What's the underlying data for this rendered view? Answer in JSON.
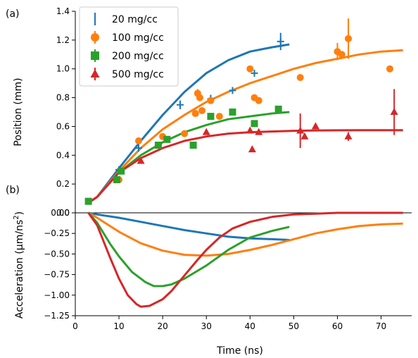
{
  "chart_data": [
    {
      "panel": "(a)",
      "type": "scatter",
      "ylabel": "Position (mm)",
      "xlim": [
        0,
        77
      ],
      "ylim": [
        0,
        1.4
      ],
      "xticks": [
        0,
        10,
        20,
        30,
        40,
        50,
        60,
        70
      ],
      "yticks": [
        0.0,
        0.2,
        0.4,
        0.6,
        0.8,
        1.0,
        1.2,
        1.4
      ],
      "yticklabels": [
        "0.0",
        "0.2",
        "0.4",
        "0.6",
        "0.8",
        "1.0",
        "1.2",
        "1.4"
      ],
      "legend_position": "top-left",
      "series": [
        {
          "name": "20 mg/cc",
          "color": "#1f77b4",
          "marker": "plus",
          "points": [
            [
              10,
              0.3,
              0.01
            ],
            [
              14.5,
              0.45,
              0.01
            ],
            [
              24,
              0.75,
              0.03
            ],
            [
              31,
              0.79,
              0.03
            ],
            [
              36,
              0.85,
              0.01
            ],
            [
              41,
              0.97,
              0.02
            ],
            [
              47,
              1.19,
              0.06
            ]
          ],
          "fit": [
            [
              3,
              0.07
            ],
            [
              5,
              0.11
            ],
            [
              10,
              0.31
            ],
            [
              15,
              0.5
            ],
            [
              20,
              0.68
            ],
            [
              25,
              0.84
            ],
            [
              30,
              0.97
            ],
            [
              35,
              1.06
            ],
            [
              40,
              1.12
            ],
            [
              45,
              1.15
            ],
            [
              49,
              1.17
            ]
          ]
        },
        {
          "name": "100 mg/cc",
          "color": "#ff7f0e",
          "marker": "circle",
          "points": [
            [
              10,
              0.23,
              0
            ],
            [
              14.5,
              0.5,
              0
            ],
            [
              20,
              0.53,
              0
            ],
            [
              25,
              0.55,
              0
            ],
            [
              27.5,
              0.69,
              0
            ],
            [
              28,
              0.83,
              0.03
            ],
            [
              28.5,
              0.8,
              0
            ],
            [
              29,
              0.71,
              0
            ],
            [
              31,
              0.78,
              0
            ],
            [
              33,
              0.67,
              0
            ],
            [
              40,
              1.0,
              0
            ],
            [
              41,
              0.8,
              0
            ],
            [
              42,
              0.78,
              0
            ],
            [
              51.5,
              0.94,
              0
            ],
            [
              60,
              1.12,
              0.06
            ],
            [
              61,
              1.1,
              0
            ],
            [
              62.5,
              1.21,
              0.14
            ],
            [
              72,
              1.0,
              0
            ]
          ],
          "fit": [
            [
              3,
              0.07
            ],
            [
              5,
              0.11
            ],
            [
              10,
              0.29
            ],
            [
              15,
              0.45
            ],
            [
              20,
              0.58
            ],
            [
              25,
              0.68
            ],
            [
              30,
              0.77
            ],
            [
              35,
              0.84
            ],
            [
              40,
              0.9
            ],
            [
              45,
              0.95
            ],
            [
              50,
              1.0
            ],
            [
              55,
              1.04
            ],
            [
              60,
              1.07
            ],
            [
              65,
              1.1
            ],
            [
              70,
              1.12
            ],
            [
              75,
              1.13
            ]
          ]
        },
        {
          "name": "200 mg/cc",
          "color": "#2ca02c",
          "marker": "square",
          "points": [
            [
              3,
              0.08,
              0
            ],
            [
              9.5,
              0.23,
              0
            ],
            [
              10.5,
              0.29,
              0
            ],
            [
              19,
              0.47,
              0
            ],
            [
              21,
              0.51,
              0
            ],
            [
              27,
              0.47,
              0
            ],
            [
              31,
              0.67,
              0
            ],
            [
              36,
              0.7,
              0
            ],
            [
              41,
              0.62,
              0
            ],
            [
              46.5,
              0.72,
              0
            ]
          ],
          "fit": [
            [
              3,
              0.07
            ],
            [
              5,
              0.11
            ],
            [
              10,
              0.28
            ],
            [
              15,
              0.4
            ],
            [
              20,
              0.49
            ],
            [
              25,
              0.56
            ],
            [
              30,
              0.61
            ],
            [
              35,
              0.65
            ],
            [
              40,
              0.67
            ],
            [
              45,
              0.69
            ],
            [
              49,
              0.7
            ]
          ]
        },
        {
          "name": "500 mg/cc",
          "color": "#d62728",
          "marker": "triangle",
          "points": [
            [
              15,
              0.36,
              0
            ],
            [
              30,
              0.56,
              0
            ],
            [
              40,
              0.57,
              0
            ],
            [
              40.5,
              0.44,
              0
            ],
            [
              42,
              0.56,
              0
            ],
            [
              51.5,
              0.57,
              0.12
            ],
            [
              52.5,
              0.53,
              0
            ],
            [
              55,
              0.6,
              0
            ],
            [
              62.5,
              0.53,
              0.03
            ],
            [
              73,
              0.7,
              0.16
            ]
          ],
          "fit": [
            [
              3,
              0.07
            ],
            [
              5,
              0.11
            ],
            [
              10,
              0.28
            ],
            [
              15,
              0.38
            ],
            [
              20,
              0.45
            ],
            [
              25,
              0.5
            ],
            [
              30,
              0.53
            ],
            [
              35,
              0.55
            ],
            [
              40,
              0.56
            ],
            [
              45,
              0.565
            ],
            [
              50,
              0.57
            ],
            [
              55,
              0.572
            ],
            [
              60,
              0.573
            ],
            [
              65,
              0.574
            ],
            [
              70,
              0.574
            ],
            [
              75,
              0.574
            ]
          ]
        }
      ]
    },
    {
      "panel": "(b)",
      "type": "line",
      "xlabel": "Time (ns)",
      "ylabel": "Acceleration (μm/ns",
      "ylabel_superscript": "2",
      "ylabel_suffix": ")",
      "xlim": [
        0,
        77
      ],
      "ylim": [
        -1.25,
        0.0
      ],
      "xticks": [
        0,
        10,
        20,
        30,
        40,
        50,
        60,
        70
      ],
      "yticks": [
        0.0,
        -0.25,
        -0.5,
        -0.75,
        -1.0,
        -1.25
      ],
      "yticklabels": [
        "0.00",
        "−0.25",
        "−0.50",
        "−0.75",
        "−1.00",
        "−1.25"
      ],
      "grid": false,
      "series": [
        {
          "color": "#1f77b4",
          "points": [
            [
              3,
              0
            ],
            [
              5,
              -0.02
            ],
            [
              10,
              -0.06
            ],
            [
              15,
              -0.11
            ],
            [
              20,
              -0.16
            ],
            [
              25,
              -0.21
            ],
            [
              30,
              -0.25
            ],
            [
              35,
              -0.29
            ],
            [
              40,
              -0.31
            ],
            [
              45,
              -0.32
            ],
            [
              49,
              -0.33
            ]
          ]
        },
        {
          "color": "#ff7f0e",
          "points": [
            [
              3,
              0
            ],
            [
              5,
              -0.06
            ],
            [
              10,
              -0.23
            ],
            [
              15,
              -0.37
            ],
            [
              20,
              -0.46
            ],
            [
              25,
              -0.51
            ],
            [
              30,
              -0.52
            ],
            [
              35,
              -0.5
            ],
            [
              40,
              -0.45
            ],
            [
              45,
              -0.39
            ],
            [
              50,
              -0.32
            ],
            [
              55,
              -0.25
            ],
            [
              60,
              -0.2
            ],
            [
              65,
              -0.16
            ],
            [
              70,
              -0.14
            ],
            [
              75,
              -0.13
            ]
          ]
        },
        {
          "color": "#2ca02c",
          "points": [
            [
              3,
              0
            ],
            [
              5,
              -0.12
            ],
            [
              8,
              -0.38
            ],
            [
              10,
              -0.53
            ],
            [
              13,
              -0.72
            ],
            [
              16,
              -0.84
            ],
            [
              18,
              -0.89
            ],
            [
              20,
              -0.89
            ],
            [
              22,
              -0.87
            ],
            [
              25,
              -0.8
            ],
            [
              30,
              -0.64
            ],
            [
              35,
              -0.45
            ],
            [
              40,
              -0.3
            ],
            [
              45,
              -0.22
            ],
            [
              49,
              -0.17
            ]
          ]
        },
        {
          "color": "#d62728",
          "points": [
            [
              3,
              0
            ],
            [
              5,
              -0.15
            ],
            [
              8,
              -0.55
            ],
            [
              10,
              -0.8
            ],
            [
              12,
              -1.0
            ],
            [
              14,
              -1.11
            ],
            [
              15,
              -1.14
            ],
            [
              17,
              -1.13
            ],
            [
              20,
              -1.05
            ],
            [
              22,
              -0.95
            ],
            [
              25,
              -0.76
            ],
            [
              28,
              -0.57
            ],
            [
              30,
              -0.45
            ],
            [
              33,
              -0.3
            ],
            [
              36,
              -0.19
            ],
            [
              40,
              -0.11
            ],
            [
              45,
              -0.05
            ],
            [
              50,
              -0.02
            ],
            [
              55,
              -0.01
            ],
            [
              60,
              0
            ],
            [
              65,
              0
            ],
            [
              70,
              0
            ],
            [
              75,
              0
            ]
          ]
        }
      ]
    }
  ]
}
